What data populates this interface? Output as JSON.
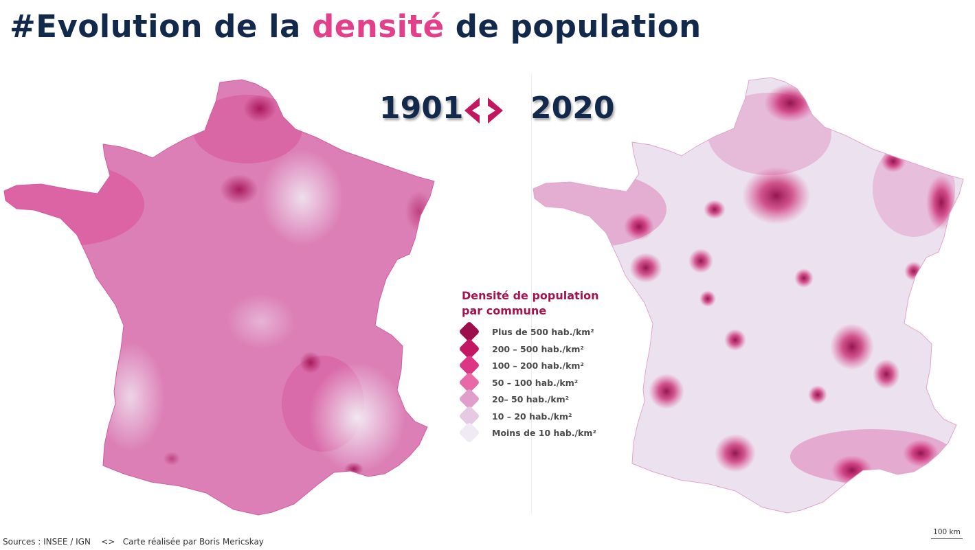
{
  "title": {
    "prefix": "#Evolution de la ",
    "highlight": "densité",
    "suffix": " de population"
  },
  "years": {
    "left": "1901",
    "right": "2020"
  },
  "legend": {
    "title_line1": "Densité de population",
    "title_line2": "par commune",
    "items": [
      {
        "label": "Plus de 500 hab./km²",
        "color": "#9c0f4d"
      },
      {
        "label": "200 – 500 hab./km²",
        "color": "#c41763"
      },
      {
        "label": "100 – 200 hab./km²",
        "color": "#dc3685"
      },
      {
        "label": "50 – 100 hab./km²",
        "color": "#e769a6"
      },
      {
        "label": "20– 50 hab./km²",
        "color": "#e19ecb"
      },
      {
        "label": "10 – 20 hab./km²",
        "color": "#e6c9e2"
      },
      {
        "label": "Moins de 10 hab./km²",
        "color": "#efeaf3"
      }
    ]
  },
  "footer": {
    "sources": "Sources : INSEE / IGN",
    "separator": "<>",
    "credit": "Carte réalisée par Boris Mericskay"
  },
  "scale": {
    "label": "100 km"
  },
  "colors": {
    "navy": "#13294b",
    "accent": "#e2408a",
    "legend_title": "#a3134f",
    "arrow": "#c0175f"
  }
}
